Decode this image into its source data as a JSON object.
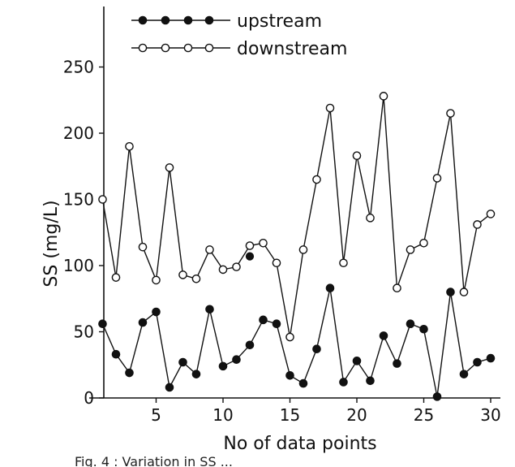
{
  "chart_data": {
    "type": "line",
    "xlabel": "No of data points",
    "ylabel": "SS (mg/L)",
    "xlim": [
      0,
      30
    ],
    "ylim": [
      0,
      280
    ],
    "x_ticks": [
      5,
      10,
      15,
      20,
      25,
      30
    ],
    "y_ticks": [
      0,
      50,
      100,
      150,
      200,
      250
    ],
    "legend_position": "top",
    "grid": false,
    "caption": "Fig. 4 : Variation in SS ...",
    "series": [
      {
        "name": "upstream",
        "marker": "filled-circle",
        "color": "#111111",
        "x": [
          1,
          2,
          3,
          4,
          5,
          6,
          7,
          8,
          9,
          10,
          11,
          12,
          13,
          14,
          15,
          16,
          17,
          18,
          19,
          20,
          21,
          22,
          23,
          24,
          25,
          26,
          27,
          28,
          29,
          30
        ],
        "y": [
          56,
          33,
          19,
          57,
          65,
          8,
          27,
          18,
          67,
          24,
          29,
          40,
          59,
          56,
          17,
          11,
          37,
          83,
          12,
          28,
          13,
          47,
          26,
          56,
          52,
          1,
          80,
          18,
          27,
          30
        ]
      },
      {
        "name": "downstream",
        "marker": "open-circle",
        "color": "#111111",
        "x": [
          1,
          2,
          3,
          4,
          5,
          6,
          7,
          8,
          9,
          10,
          11,
          12,
          13,
          14,
          15,
          16,
          17,
          18,
          19,
          20,
          21,
          22,
          23,
          24,
          25,
          26,
          27,
          28,
          29,
          30
        ],
        "y": [
          150,
          91,
          190,
          114,
          89,
          174,
          93,
          90,
          112,
          97,
          99,
          115,
          117,
          102,
          46,
          112,
          165,
          219,
          102,
          183,
          136,
          228,
          83,
          112,
          117,
          166,
          215,
          80,
          131,
          139
        ]
      }
    ],
    "annotations": [
      {
        "type": "point",
        "x": 12,
        "y": 107,
        "marker": "filled-circle"
      }
    ]
  }
}
